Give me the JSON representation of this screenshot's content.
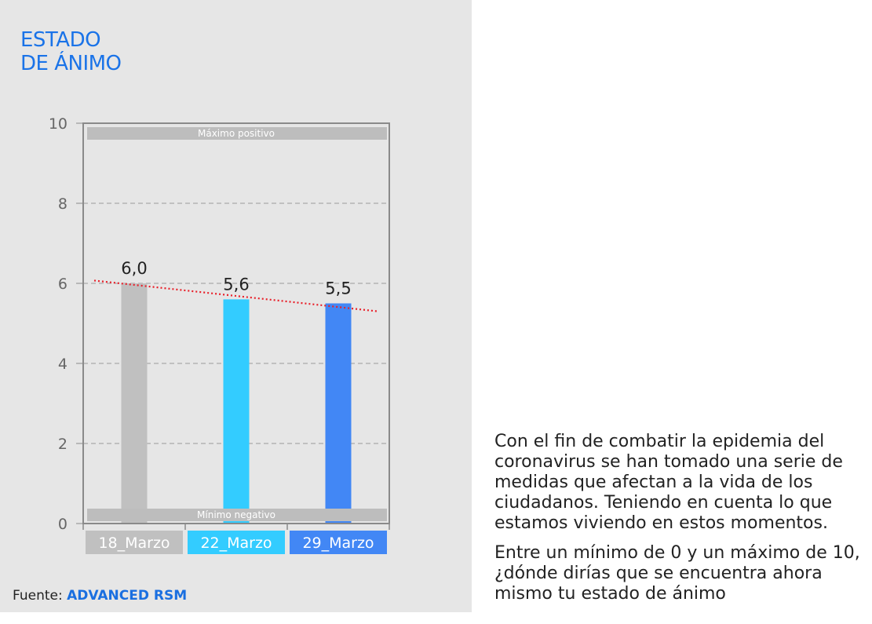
{
  "title_lines": [
    "ESTADO",
    "DE ÁNIMO"
  ],
  "chart_data": {
    "type": "bar",
    "categories": [
      "18_Marzo",
      "22_Marzo",
      "29_Marzo"
    ],
    "values": [
      6.0,
      5.6,
      5.5
    ],
    "value_labels": [
      "6,0",
      "5,6",
      "5,5"
    ],
    "ylim": [
      0,
      10
    ],
    "yticks": [
      0,
      2,
      4,
      6,
      8,
      10
    ],
    "grid": "horizontal dashed",
    "trendline": {
      "style": "dotted",
      "color": "#e8202a",
      "start": 6.07,
      "end": 5.3
    },
    "bands": {
      "top": "Máximo positivo",
      "bottom": "Mínimo negativo"
    },
    "colors": [
      "#c0c0c0",
      "#33ccff",
      "#4287f5"
    ]
  },
  "source": {
    "label": "Fuente:",
    "value": "ADVANCED RSM"
  },
  "text": {
    "p1": "Con el fin de combatir la epidemia del coronavirus se han tomado una serie de medidas que afectan a la vida de los ciudadanos. Teniendo en cuenta lo que estamos viviendo en estos momentos.",
    "p2": "Entre un mínimo de 0 y un máximo de 10, ¿dónde dirías que se encuentra ahora mismo tu estado de ánimo"
  }
}
